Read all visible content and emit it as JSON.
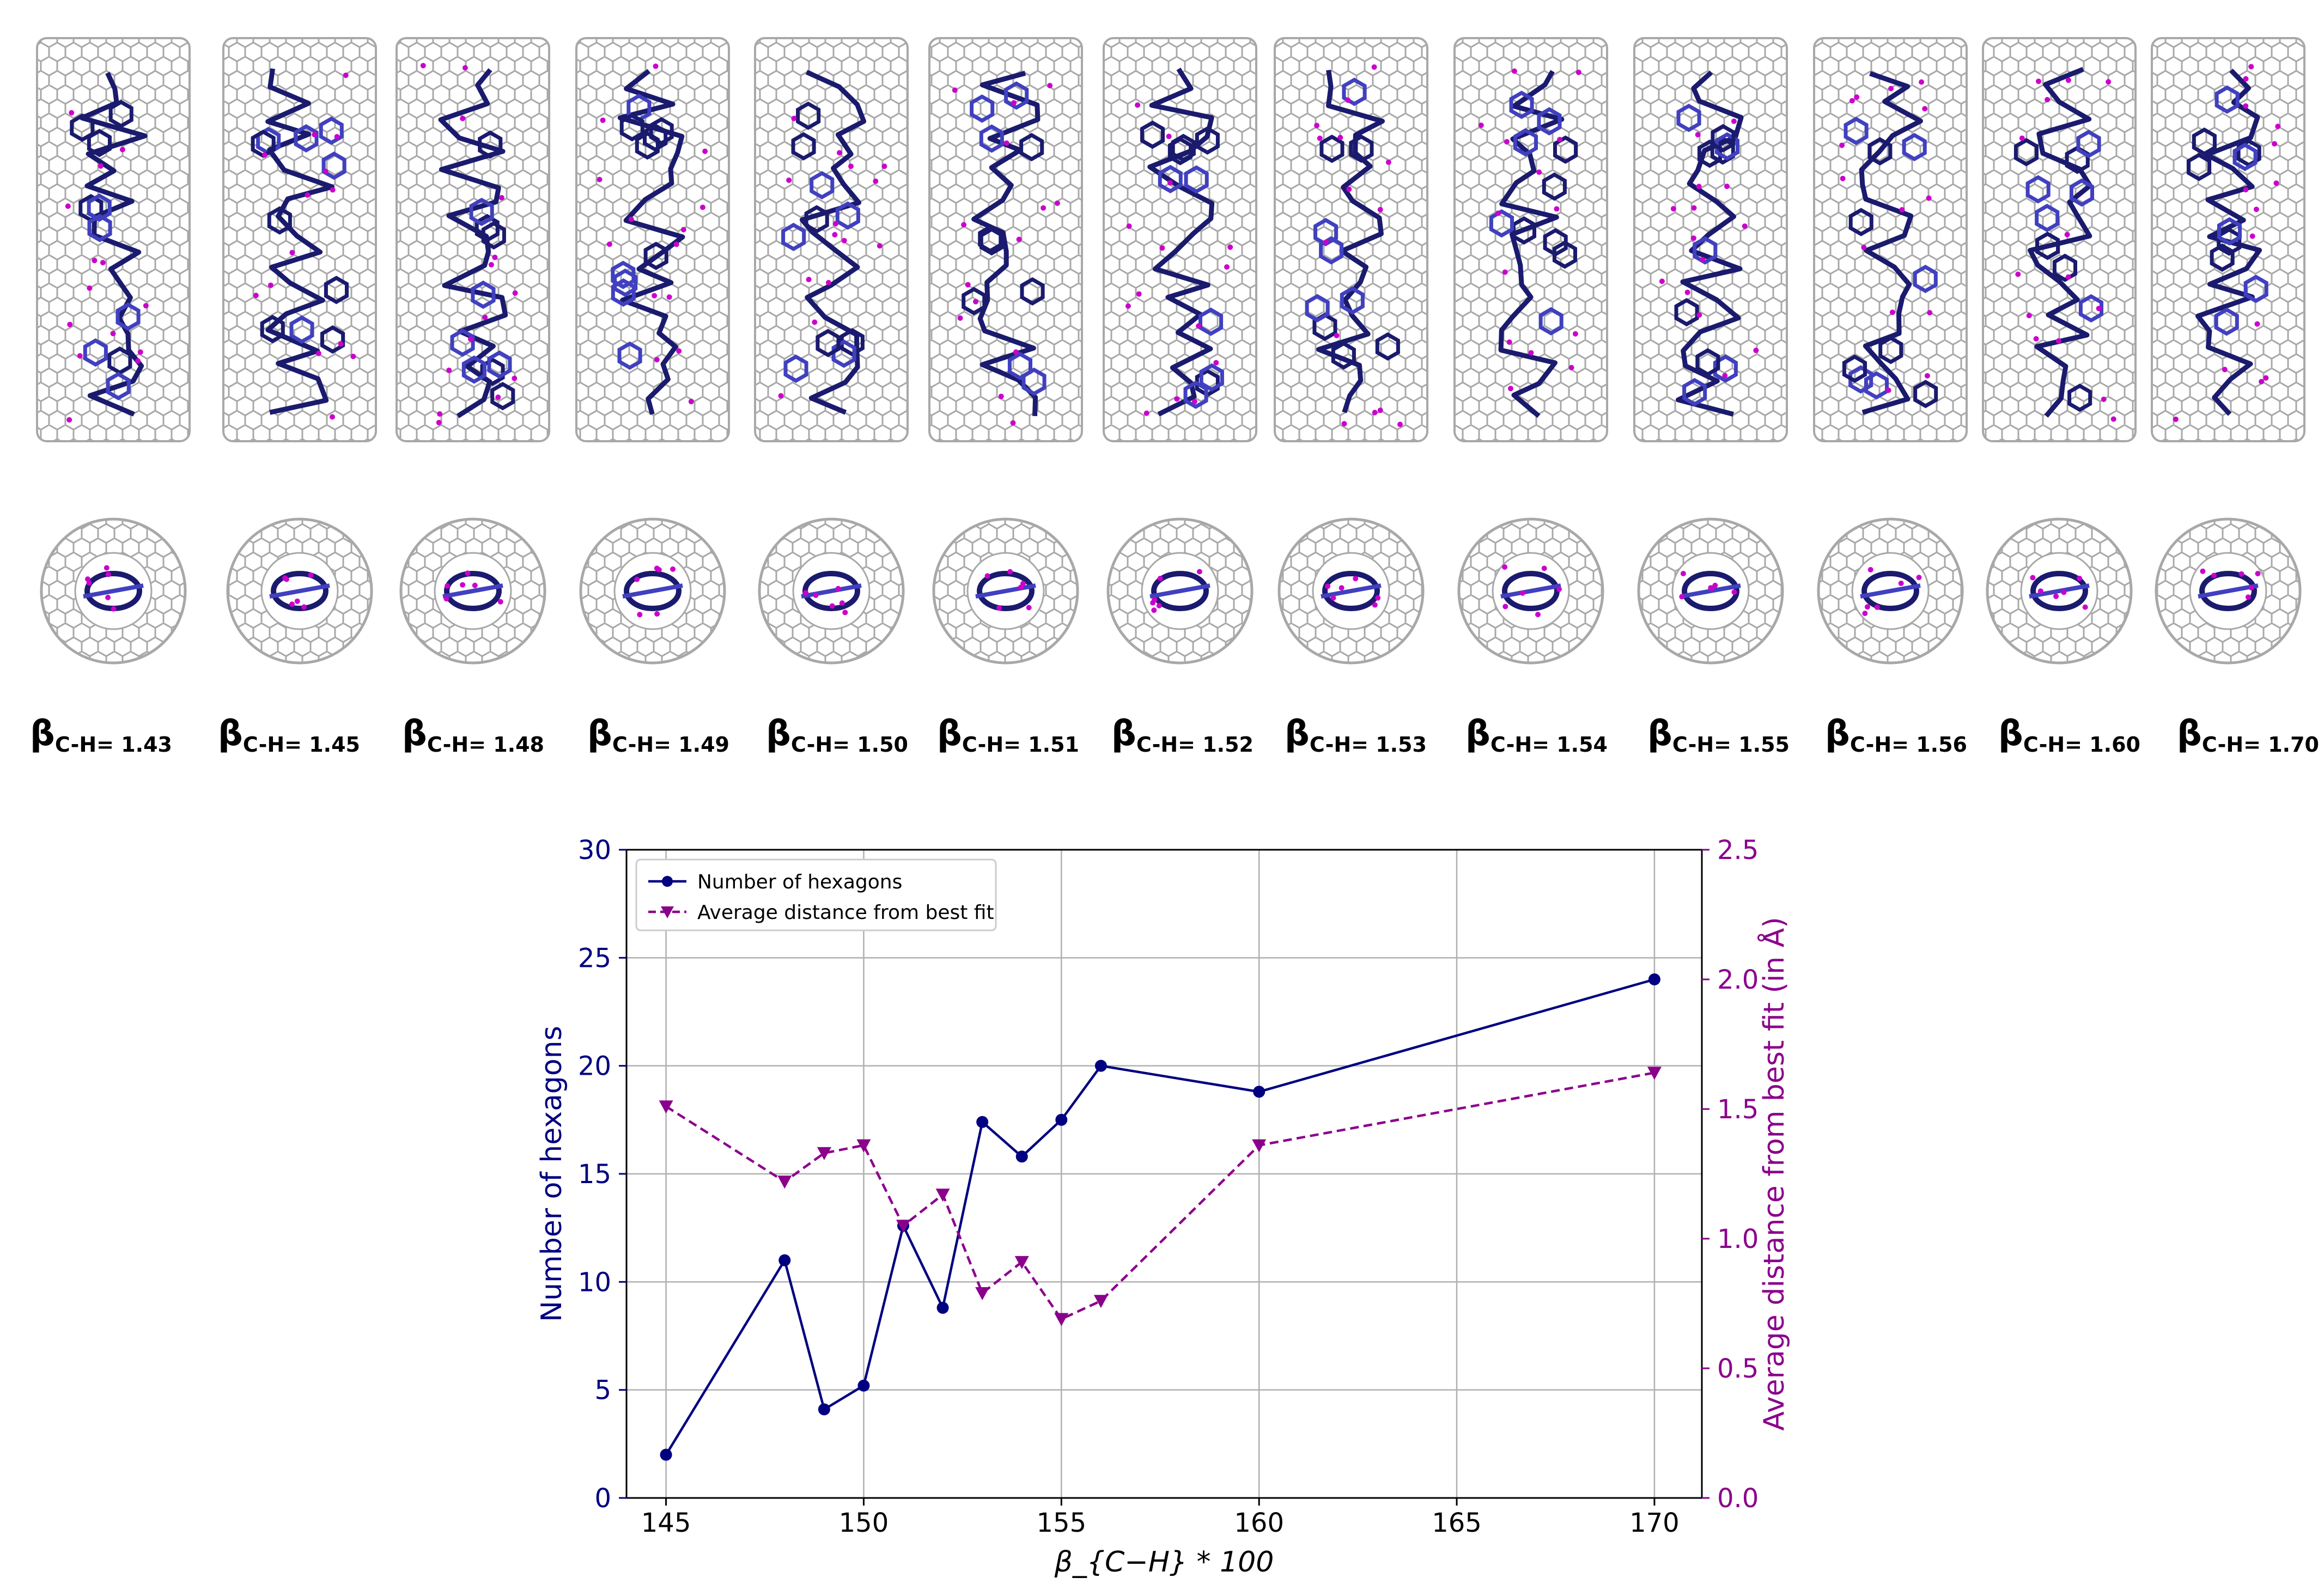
{
  "panel_labels": [
    {
      "symbol": "β",
      "sub": "C-H= 1.43"
    },
    {
      "symbol": "β",
      "sub": "C-H= 1.45"
    },
    {
      "symbol": "β",
      "sub": "C-H= 1.48"
    },
    {
      "symbol": "β",
      "sub": "C-H= 1.49"
    },
    {
      "symbol": "β",
      "sub": "C-H= 1.50"
    },
    {
      "symbol": "β",
      "sub": "C-H= 1.51"
    },
    {
      "symbol": "β",
      "sub": "C-H= 1.52"
    },
    {
      "symbol": "β",
      "sub": "C-H= 1.53"
    },
    {
      "symbol": "β",
      "sub": "C-H= 1.54"
    },
    {
      "symbol": "β",
      "sub": "C-H= 1.55"
    },
    {
      "symbol": "β",
      "sub": "C-H= 1.56"
    },
    {
      "symbol": "β",
      "sub": "C-H= 1.60"
    },
    {
      "symbol": "β",
      "sub": "C-H= 1.70"
    }
  ],
  "colors": {
    "hexagons": "#000080",
    "distance": "#8b008b",
    "tube": "#a8a8a8",
    "molecule": "#1a1a6e",
    "molecule_accent": "#4040c0",
    "hydrogen": "#cc00cc"
  },
  "chart_data": {
    "type": "line",
    "xlabel": "β_{C−H} * 100",
    "ylabel": "Number of hexagons",
    "y2label": "Average distance from best fit (in Å)",
    "xlim": [
      144,
      171.2
    ],
    "ylim": [
      0,
      30
    ],
    "y2lim": [
      0,
      2.5
    ],
    "xticks": [
      145,
      150,
      155,
      160,
      165,
      170
    ],
    "yticks": [
      0,
      5,
      10,
      15,
      20,
      25,
      30
    ],
    "y2ticks": [
      "0.0",
      "0.5",
      "1.0",
      "1.5",
      "2.0",
      "2.5"
    ],
    "grid": true,
    "legend_position": "top-left",
    "series": [
      {
        "name": "Number of hexagons",
        "axis": "left",
        "marker": "circle",
        "linestyle": "solid",
        "x": [
          145,
          148,
          149,
          150,
          151,
          152,
          153,
          154,
          155,
          156,
          160,
          170
        ],
        "values": [
          2,
          11,
          4.1,
          5.2,
          12.6,
          8.8,
          17.4,
          15.8,
          17.5,
          20,
          18.8,
          24
        ]
      },
      {
        "name": "Average distance from best fit",
        "axis": "right",
        "marker": "triangle-down",
        "linestyle": "dashed",
        "x": [
          145,
          148,
          149,
          150,
          151,
          152,
          153,
          154,
          155,
          156,
          160,
          170
        ],
        "values": [
          1.51,
          1.22,
          1.33,
          1.36,
          1.05,
          1.17,
          0.79,
          0.91,
          0.69,
          0.76,
          1.36,
          1.64
        ]
      }
    ]
  }
}
